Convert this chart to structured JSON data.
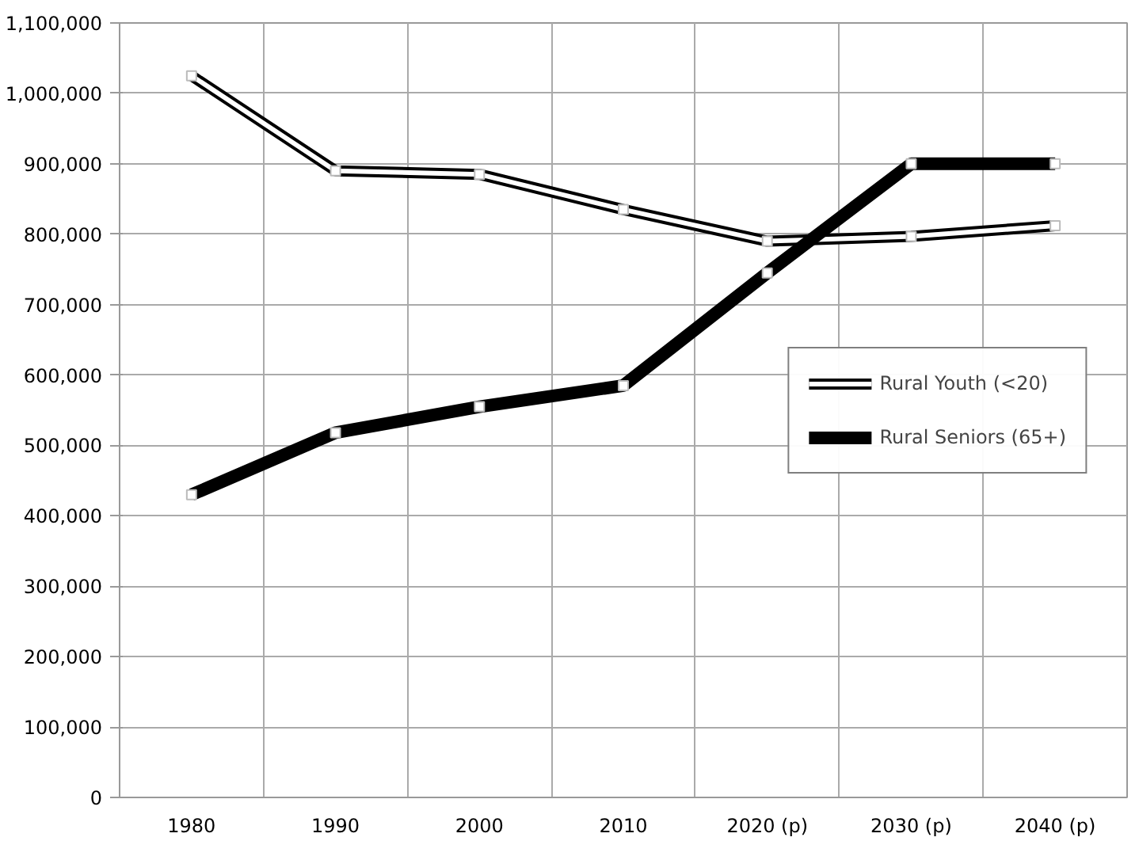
{
  "chart_data": {
    "type": "line",
    "categories": [
      "1980",
      "1990",
      "2000",
      "2010",
      "2020 (p)",
      "2030 (p)",
      "2040 (p)"
    ],
    "series": [
      {
        "name": "Rural Youth (<20)",
        "color": "#000000",
        "values": [
          1025000,
          890000,
          885000,
          835000,
          790000,
          797000,
          812000
        ]
      },
      {
        "name": "Rural Seniors (65+)",
        "color": "#000000",
        "values": [
          430000,
          518000,
          555000,
          585000,
          745000,
          900000,
          900000
        ]
      }
    ],
    "ylim": [
      0,
      1100000
    ],
    "yticks": [
      {
        "value": 0,
        "label": "0"
      },
      {
        "value": 100000,
        "label": "100,000"
      },
      {
        "value": 200000,
        "label": "200,000"
      },
      {
        "value": 300000,
        "label": "300,000"
      },
      {
        "value": 400000,
        "label": "400,000"
      },
      {
        "value": 500000,
        "label": "500,000"
      },
      {
        "value": 600000,
        "label": "600,000"
      },
      {
        "value": 700000,
        "label": "700,000"
      },
      {
        "value": 800000,
        "label": "800,000"
      },
      {
        "value": 900000,
        "label": "900,000"
      },
      {
        "value": 1000000,
        "label": "1,000,000"
      },
      {
        "value": 1100000,
        "label": "1,100,000"
      }
    ],
    "grid": true,
    "legend": "right",
    "marker": "square",
    "line_style": "solid"
  }
}
